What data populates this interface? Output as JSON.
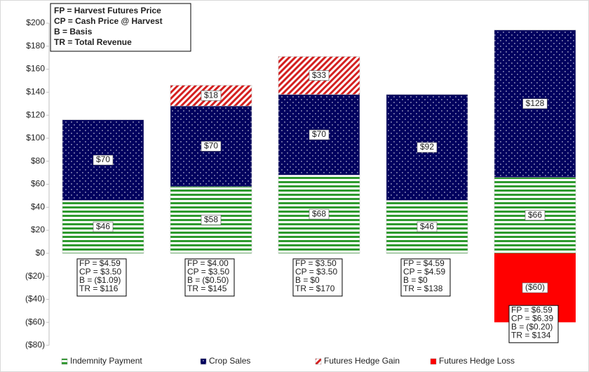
{
  "chart_data": {
    "type": "stacked-bar",
    "categories": [
      null,
      null,
      null,
      null,
      null
    ],
    "series": [
      {
        "name": "Indemnity Payment",
        "color": "#2e9a2e",
        "pattern": "horizontal-lines",
        "values": [
          46,
          58,
          68,
          46,
          66
        ],
        "value_labels": [
          "$46",
          "$58",
          "$68",
          "$46",
          "$66"
        ]
      },
      {
        "name": "Crop Sales",
        "color": "#00005e",
        "pattern": "dots",
        "values": [
          70,
          70,
          70,
          92,
          128
        ],
        "value_labels": [
          "$70",
          "$70",
          "$70",
          "$92",
          "$128"
        ]
      },
      {
        "name": "Futures Hedge Gain",
        "color": "#d42020",
        "pattern": "diagonal-lines",
        "values": [
          null,
          18,
          33,
          null,
          null
        ],
        "value_labels": [
          null,
          "$18",
          "$33",
          null,
          null
        ]
      },
      {
        "name": "Futures Hedge Loss",
        "color": "#ff0000",
        "pattern": "solid",
        "values": [
          null,
          null,
          null,
          null,
          -60
        ],
        "value_labels": [
          null,
          null,
          null,
          null,
          "($60)"
        ]
      }
    ],
    "ylim": [
      -80,
      200
    ],
    "yticks": [
      {
        "value": -80,
        "label": "($80)"
      },
      {
        "value": -60,
        "label": "($60)"
      },
      {
        "value": -40,
        "label": "($40)"
      },
      {
        "value": -20,
        "label": "($20)"
      },
      {
        "value": 0,
        "label": "$0"
      },
      {
        "value": 20,
        "label": "$20"
      },
      {
        "value": 40,
        "label": "$40"
      },
      {
        "value": 60,
        "label": "$60"
      },
      {
        "value": 80,
        "label": "$80"
      },
      {
        "value": 100,
        "label": "$100"
      },
      {
        "value": 120,
        "label": "$120"
      },
      {
        "value": 140,
        "label": "$140"
      },
      {
        "value": 160,
        "label": "$160"
      },
      {
        "value": 180,
        "label": "$180"
      },
      {
        "value": 200,
        "label": "$200"
      }
    ],
    "key": [
      "FP = Harvest Futures Price",
      "CP = Cash Price @ Harvest",
      "B = Basis",
      "TR = Total Revenue"
    ],
    "annotations": [
      {
        "fp": "FP = $4.59",
        "cp": "CP = $3.50",
        "b_label": "B =",
        "b": "($1.09)",
        "tr": "TR = $116"
      },
      {
        "fp": "FP = $4.00",
        "cp": "CP = $3.50",
        "b_label": "B =",
        "b": "($0.50)",
        "tr": "TR = $145"
      },
      {
        "fp": "FP = $3.50",
        "cp": "CP = $3.50",
        "b_label": "B =",
        "b": "$0",
        "tr": "TR = $170"
      },
      {
        "fp": "FP = $4.59",
        "cp": "CP = $4.59",
        "b_label": "B =",
        "b": "$0",
        "tr": "TR = $138"
      },
      {
        "fp": "FP = $6.59",
        "cp": "CP = $6.39",
        "b_label": "B =",
        "b": "($0.20)",
        "tr": "TR = $134"
      }
    ],
    "legend": "bottom"
  }
}
